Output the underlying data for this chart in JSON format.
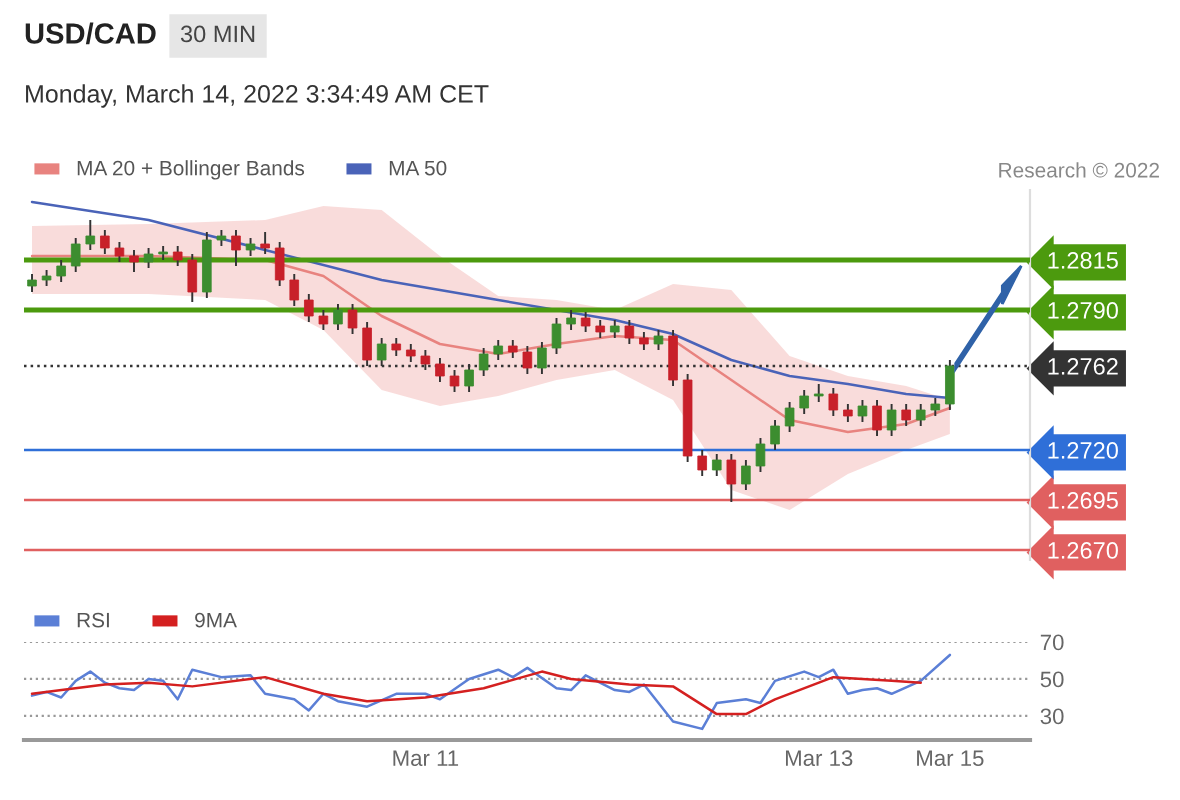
{
  "chart_data": [
    {
      "type": "candlestick",
      "title": "USD/CAD",
      "subtitle": "Monday, March 14, 2022 3:34:49 AM CET",
      "annotations": [
        "30 MIN",
        "Research © 2022"
      ],
      "categories": [
        null,
        null,
        null,
        null,
        null,
        null,
        null,
        null,
        null,
        null,
        null,
        null,
        null,
        null,
        null,
        null,
        null,
        null,
        null,
        null,
        null,
        null,
        null,
        null,
        null,
        null,
        null,
        null,
        null,
        null,
        null,
        null,
        null,
        null,
        null,
        null,
        null,
        null,
        null,
        null,
        null,
        null,
        null,
        null,
        null,
        null,
        null,
        null,
        null,
        null,
        null,
        null,
        null,
        null,
        null,
        null,
        null,
        null,
        null,
        null,
        null,
        null,
        null,
        null
      ],
      "ohlc": [
        [
          1.2802,
          1.2808,
          1.2799,
          1.2805
        ],
        [
          1.2805,
          1.281,
          1.2802,
          1.2807
        ],
        [
          1.2807,
          1.2815,
          1.2804,
          1.2812
        ],
        [
          1.2812,
          1.2826,
          1.2809,
          1.2823
        ],
        [
          1.2823,
          1.2835,
          1.282,
          1.2827
        ],
        [
          1.2827,
          1.283,
          1.2818,
          1.2821
        ],
        [
          1.2821,
          1.2824,
          1.2814,
          1.2817
        ],
        [
          1.2817,
          1.282,
          1.2809,
          1.2814
        ],
        [
          1.2814,
          1.2821,
          1.2811,
          1.2818
        ],
        [
          1.2818,
          1.2822,
          1.2815,
          1.2819
        ],
        [
          1.2819,
          1.2822,
          1.2812,
          1.2815
        ],
        [
          1.2815,
          1.2818,
          1.2794,
          1.2799
        ],
        [
          1.2799,
          1.2829,
          1.2796,
          1.2825
        ],
        [
          1.2825,
          1.283,
          1.2822,
          1.2827
        ],
        [
          1.2827,
          1.283,
          1.2812,
          1.282
        ],
        [
          1.282,
          1.2826,
          1.2817,
          1.2823
        ],
        [
          1.2823,
          1.2829,
          1.2818,
          1.2821
        ],
        [
          1.2821,
          1.2824,
          1.2802,
          1.2805
        ],
        [
          1.2805,
          1.2808,
          1.2792,
          1.2795
        ],
        [
          1.2795,
          1.2798,
          1.2784,
          1.2787
        ],
        [
          1.2787,
          1.279,
          1.278,
          1.2783
        ],
        [
          1.2783,
          1.2793,
          1.278,
          1.279
        ],
        [
          1.279,
          1.2793,
          1.2778,
          1.2781
        ],
        [
          1.2781,
          1.2784,
          1.2762,
          1.2765
        ],
        [
          1.2765,
          1.2776,
          1.2762,
          1.2773
        ],
        [
          1.2773,
          1.2776,
          1.2767,
          1.277
        ],
        [
          1.277,
          1.2773,
          1.2764,
          1.2767
        ],
        [
          1.2767,
          1.277,
          1.276,
          1.2763
        ],
        [
          1.2763,
          1.2766,
          1.2754,
          1.2757
        ],
        [
          1.2757,
          1.276,
          1.2749,
          1.2752
        ],
        [
          1.2752,
          1.2763,
          1.2749,
          1.276
        ],
        [
          1.276,
          1.2771,
          1.2757,
          1.2768
        ],
        [
          1.2768,
          1.2775,
          1.2765,
          1.2772
        ],
        [
          1.2772,
          1.2775,
          1.2766,
          1.2769
        ],
        [
          1.2769,
          1.2772,
          1.2758,
          1.2761
        ],
        [
          1.2761,
          1.2774,
          1.2758,
          1.2771
        ],
        [
          1.2771,
          1.2786,
          1.2768,
          1.2783
        ],
        [
          1.2783,
          1.279,
          1.278,
          1.2786
        ],
        [
          1.2786,
          1.2789,
          1.2779,
          1.2782
        ],
        [
          1.2782,
          1.2785,
          1.2776,
          1.2779
        ],
        [
          1.2779,
          1.2785,
          1.2776,
          1.2782
        ],
        [
          1.2782,
          1.2785,
          1.2773,
          1.2776
        ],
        [
          1.2776,
          1.2779,
          1.277,
          1.2773
        ],
        [
          1.2773,
          1.278,
          1.277,
          1.2777
        ],
        [
          1.2777,
          1.278,
          1.2752,
          1.2755
        ],
        [
          1.2755,
          1.2758,
          1.2714,
          1.2717
        ],
        [
          1.2717,
          1.272,
          1.2707,
          1.271
        ],
        [
          1.271,
          1.2718,
          1.2707,
          1.2715
        ],
        [
          1.2715,
          1.2718,
          1.2694,
          1.2703
        ],
        [
          1.2703,
          1.2715,
          1.27,
          1.2712
        ],
        [
          1.2712,
          1.2726,
          1.2709,
          1.2723
        ],
        [
          1.2723,
          1.2735,
          1.272,
          1.2732
        ],
        [
          1.2732,
          1.2744,
          1.2729,
          1.2741
        ],
        [
          1.2741,
          1.275,
          1.2738,
          1.2747
        ],
        [
          1.2747,
          1.2753,
          1.2744,
          1.2748
        ],
        [
          1.2748,
          1.2751,
          1.2737,
          1.274
        ],
        [
          1.274,
          1.2743,
          1.2734,
          1.2737
        ],
        [
          1.2737,
          1.2745,
          1.2734,
          1.2742
        ],
        [
          1.2742,
          1.2745,
          1.2727,
          1.273
        ],
        [
          1.273,
          1.2743,
          1.2727,
          1.274
        ],
        [
          1.274,
          1.2743,
          1.2732,
          1.2735
        ],
        [
          1.2735,
          1.2743,
          1.2732,
          1.274
        ],
        [
          1.274,
          1.2746,
          1.2737,
          1.2743
        ],
        [
          1.2743,
          1.2765,
          1.274,
          1.2762
        ]
      ],
      "colors": [
        "#3c8d2f",
        "#3c8d2f",
        "#3c8d2f",
        "#3c8d2f",
        "#3c8d2f",
        "#c8202a",
        "#c8202a",
        "#c8202a",
        "#3c8d2f",
        "#3c8d2f",
        "#c8202a",
        "#c8202a",
        "#3c8d2f",
        "#3c8d2f",
        "#c8202a",
        "#3c8d2f",
        "#c8202a",
        "#c8202a",
        "#c8202a",
        "#c8202a",
        "#c8202a",
        "#3c8d2f",
        "#c8202a",
        "#c8202a",
        "#3c8d2f",
        "#c8202a",
        "#c8202a",
        "#c8202a",
        "#c8202a",
        "#c8202a",
        "#3c8d2f",
        "#3c8d2f",
        "#3c8d2f",
        "#c8202a",
        "#c8202a",
        "#3c8d2f",
        "#3c8d2f",
        "#3c8d2f",
        "#c8202a",
        "#c8202a",
        "#3c8d2f",
        "#c8202a",
        "#c8202a",
        "#3c8d2f",
        "#c8202a",
        "#c8202a",
        "#c8202a",
        "#3c8d2f",
        "#c8202a",
        "#3c8d2f",
        "#3c8d2f",
        "#3c8d2f",
        "#3c8d2f",
        "#3c8d2f",
        "#3c8d2f",
        "#c8202a",
        "#c8202a",
        "#3c8d2f",
        "#c8202a",
        "#3c8d2f",
        "#c8202a",
        "#3c8d2f",
        "#3c8d2f",
        "#3c8d2f"
      ],
      "series": [
        {
          "name": "MA 20 + Bollinger Bands",
          "type": "line",
          "color": "#e8837f",
          "values": [
            1.2817,
            null,
            null,
            null,
            null,
            null,
            null,
            null,
            1.2817,
            null,
            null,
            null,
            null,
            null,
            null,
            null,
            1.2815,
            null,
            null,
            null,
            1.2807,
            null,
            null,
            null,
            1.2787,
            null,
            null,
            null,
            1.2773,
            null,
            null,
            null,
            1.2768,
            null,
            null,
            null,
            1.2773,
            null,
            null,
            null,
            1.2777,
            null,
            null,
            null,
            1.2775,
            null,
            null,
            null,
            1.2755,
            null,
            null,
            null,
            1.2735,
            null,
            null,
            null,
            1.2729,
            null,
            null,
            null,
            1.2733,
            null,
            null,
            1.2741
          ],
          "upper": [
            1.2832,
            null,
            null,
            null,
            null,
            null,
            null,
            null,
            1.2833,
            null,
            null,
            null,
            null,
            null,
            null,
            null,
            1.2835,
            null,
            null,
            null,
            1.2842,
            null,
            null,
            null,
            1.284,
            null,
            null,
            null,
            1.2817,
            null,
            null,
            null,
            1.2797,
            null,
            null,
            null,
            1.2795,
            null,
            null,
            null,
            1.279,
            null,
            null,
            null,
            1.2803,
            null,
            null,
            null,
            1.28,
            null,
            null,
            null,
            1.2767,
            null,
            null,
            null,
            1.2757,
            null,
            null,
            null,
            1.2752,
            null,
            null,
            1.2745
          ],
          "lower": [
            1.2798,
            null,
            null,
            null,
            null,
            null,
            null,
            null,
            1.2798,
            null,
            null,
            null,
            null,
            null,
            null,
            null,
            1.2795,
            null,
            null,
            null,
            1.278,
            null,
            null,
            null,
            1.275,
            null,
            null,
            null,
            1.2742,
            null,
            null,
            null,
            1.2747,
            null,
            null,
            null,
            1.2755,
            null,
            null,
            null,
            1.276,
            null,
            null,
            null,
            1.2745,
            null,
            null,
            null,
            1.27,
            null,
            null,
            null,
            1.269,
            null,
            null,
            null,
            1.2708,
            null,
            null,
            null,
            1.272,
            null,
            null,
            1.2728
          ]
        },
        {
          "name": "MA 50",
          "type": "line",
          "color": "#4a63b8",
          "values": [
            1.2844,
            null,
            null,
            null,
            null,
            null,
            null,
            null,
            1.2835,
            null,
            null,
            null,
            null,
            null,
            null,
            null,
            1.282,
            null,
            null,
            null,
            null,
            null,
            null,
            null,
            1.2805,
            null,
            null,
            null,
            null,
            null,
            null,
            null,
            1.2795,
            null,
            null,
            null,
            null,
            null,
            null,
            null,
            1.2785,
            null,
            null,
            null,
            1.2778,
            null,
            null,
            null,
            1.2765,
            null,
            null,
            null,
            1.2757,
            null,
            null,
            null,
            1.2753,
            null,
            null,
            null,
            1.2748,
            null,
            null,
            1.2746
          ]
        }
      ],
      "tick_labels": "y",
      "legend": "top left",
      "ylim": [
        1.2665,
        1.285
      ],
      "yticks": [
        {
          "value": 1.267,
          "label": "1.2670"
        },
        1.2695,
        {
          "value": 1.272,
          "label": "1.2720"
        },
        1.2762,
        {
          "value": 1.279,
          "label": "1.2790"
        },
        1.2815
      ],
      "ref_lines": [
        {
          "axis": "y",
          "value": 1.2815,
          "color": "#4c9a0e",
          "line_style": "solid"
        },
        {
          "axis": "y",
          "value": 1.279,
          "color": "#4c9a0e",
          "line_style": "solid"
        },
        {
          "axis": "y",
          "value": 1.2762,
          "color": "#333333",
          "line_style": "dotted"
        },
        {
          "axis": "y",
          "value": 1.272,
          "color": "#2f6fd8",
          "line_style": "solid"
        },
        {
          "axis": "y",
          "value": 1.2695,
          "color": "#e06060",
          "line_style": "solid"
        },
        {
          "axis": "y",
          "value": 1.267,
          "color": "#e06060",
          "line_style": "solid"
        }
      ]
    },
    {
      "type": "line",
      "legend": "top left",
      "grid": "y",
      "categories": [
        null,
        null,
        null,
        null,
        null,
        null,
        null,
        null,
        null,
        null,
        null,
        null,
        null,
        null,
        null,
        null,
        null,
        null,
        null,
        null,
        null,
        null,
        null,
        null,
        null,
        null,
        null,
        "Mar 11",
        null,
        null,
        null,
        null,
        null,
        null,
        null,
        null,
        null,
        null,
        null,
        null,
        null,
        null,
        null,
        null,
        null,
        null,
        null,
        null,
        null,
        null,
        null,
        null,
        null,
        null,
        "Mar 13",
        null,
        null,
        null,
        null,
        null,
        null,
        null,
        null,
        "Mar 15"
      ],
      "series": [
        {
          "name": "RSI",
          "color": "#5b7fd6",
          "values": [
            41,
            43,
            40,
            49,
            54,
            48,
            45,
            44,
            50,
            49,
            39,
            55,
            null,
            51,
            null,
            52,
            42,
            null,
            39,
            33,
            42,
            38,
            null,
            35,
            null,
            42,
            null,
            42,
            39,
            null,
            50,
            null,
            55,
            51,
            56,
            null,
            45,
            44,
            52,
            null,
            44,
            43,
            47,
            37,
            27,
            null,
            23,
            37,
            null,
            39,
            37,
            49,
            null,
            54,
            51,
            55,
            42,
            44,
            45,
            42,
            null,
            49,
            null,
            63
          ]
        },
        {
          "name": "9MA",
          "color": "#d42020",
          "values": [
            42,
            null,
            null,
            null,
            null,
            47,
            null,
            null,
            48,
            null,
            null,
            46,
            null,
            null,
            null,
            null,
            51,
            null,
            null,
            null,
            42,
            null,
            null,
            38,
            null,
            null,
            null,
            40,
            null,
            null,
            null,
            45,
            null,
            null,
            null,
            54,
            null,
            50,
            null,
            null,
            null,
            47,
            null,
            null,
            46,
            null,
            null,
            31,
            null,
            31,
            null,
            39,
            null,
            null,
            null,
            51,
            null,
            null,
            null,
            49,
            null,
            48,
            null,
            null
          ]
        }
      ],
      "ylim": [
        17,
        70
      ],
      "yticks": [
        30,
        50,
        70
      ]
    }
  ]
}
